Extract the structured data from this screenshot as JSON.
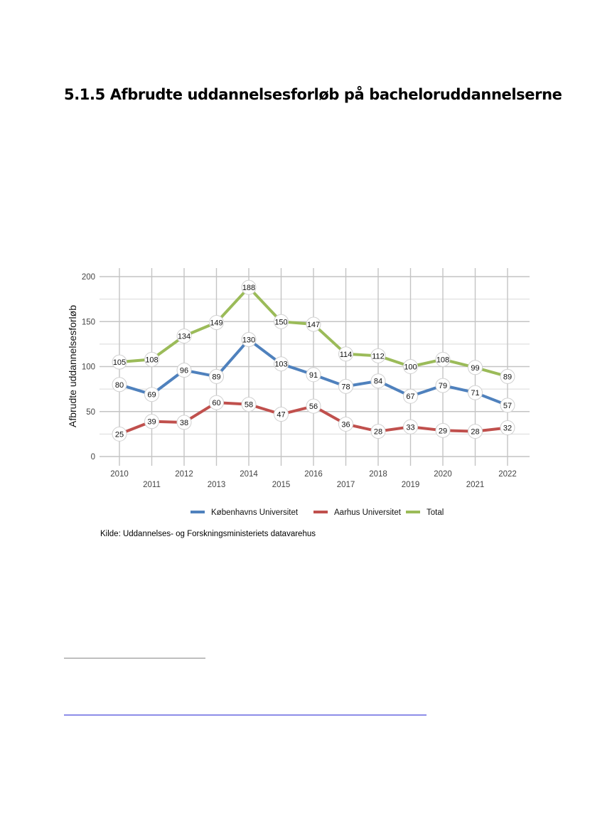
{
  "document": {
    "heading": "5.1.5 Afbrudte uddannelsesforløb på bacheloruddannelserne",
    "source": "Kilde: Uddannelses- og Forskningsministeriets datavarehus"
  },
  "chart_data": {
    "type": "line",
    "title": "",
    "xlabel": "",
    "ylabel": "Afbrudte uddannelsesforløb",
    "x": [
      "2010",
      "2011",
      "2012",
      "2013",
      "2014",
      "2015",
      "2016",
      "2017",
      "2018",
      "2019",
      "2020",
      "2021",
      "2022"
    ],
    "ylim": [
      0,
      200
    ],
    "yticks": [
      0,
      50,
      100,
      150,
      200
    ],
    "grid": true,
    "legend_position": "bottom",
    "series": [
      {
        "name": "Københavns Universitet",
        "color": "#4f81bd",
        "values": [
          80,
          69,
          96,
          89,
          130,
          103,
          91,
          78,
          84,
          67,
          79,
          71,
          57
        ]
      },
      {
        "name": "Aarhus Universitet",
        "color": "#c0504d",
        "values": [
          25,
          39,
          38,
          60,
          58,
          47,
          56,
          36,
          28,
          33,
          29,
          28,
          32
        ]
      },
      {
        "name": "Total",
        "color": "#9bbb59",
        "values": [
          105,
          108,
          134,
          149,
          188,
          150,
          147,
          114,
          112,
          100,
          108,
          99,
          89
        ]
      }
    ]
  }
}
